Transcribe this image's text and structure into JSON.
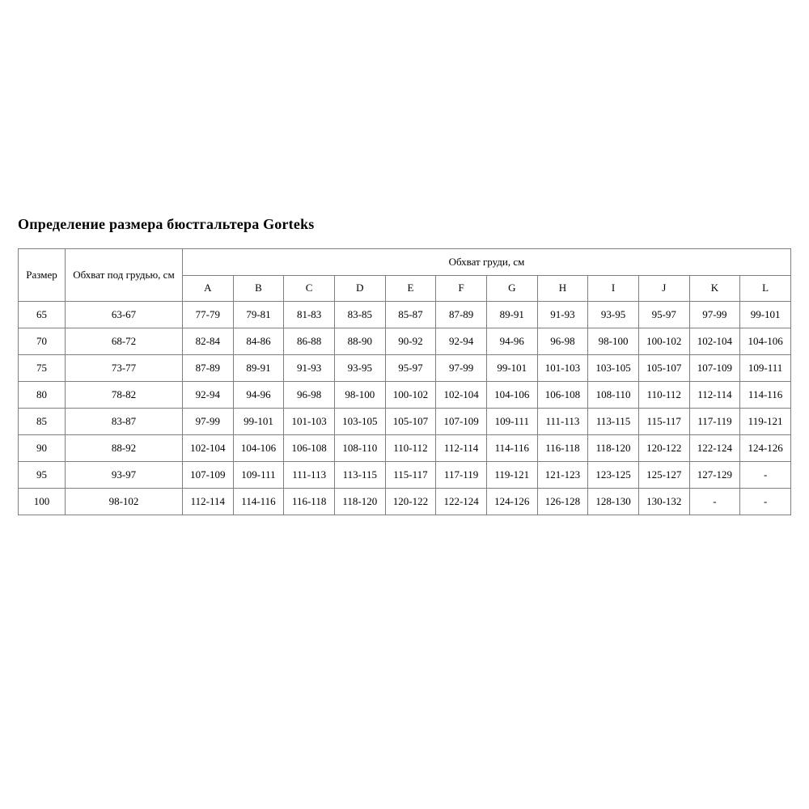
{
  "page": {
    "title": "Определение размера бюстгальтера Gorteks"
  },
  "colors": {
    "background": "#ffffff",
    "text": "#000000",
    "table_border": "#7f7f7f"
  },
  "table": {
    "header": {
      "size_label": "Размер",
      "underbust_label": "Обхват под грудью, см",
      "bust_label": "Обхват груди, см",
      "cup_columns": [
        "A",
        "B",
        "C",
        "D",
        "E",
        "F",
        "G",
        "H",
        "I",
        "J",
        "K",
        "L"
      ]
    },
    "rows": [
      {
        "size": "65",
        "underbust": "63-67",
        "cups": [
          "77-79",
          "79-81",
          "81-83",
          "83-85",
          "85-87",
          "87-89",
          "89-91",
          "91-93",
          "93-95",
          "95-97",
          "97-99",
          "99-101"
        ]
      },
      {
        "size": "70",
        "underbust": "68-72",
        "cups": [
          "82-84",
          "84-86",
          "86-88",
          "88-90",
          "90-92",
          "92-94",
          "94-96",
          "96-98",
          "98-100",
          "100-102",
          "102-104",
          "104-106"
        ]
      },
      {
        "size": "75",
        "underbust": "73-77",
        "cups": [
          "87-89",
          "89-91",
          "91-93",
          "93-95",
          "95-97",
          "97-99",
          "99-101",
          "101-103",
          "103-105",
          "105-107",
          "107-109",
          "109-111"
        ]
      },
      {
        "size": "80",
        "underbust": "78-82",
        "cups": [
          "92-94",
          "94-96",
          "96-98",
          "98-100",
          "100-102",
          "102-104",
          "104-106",
          "106-108",
          "108-110",
          "110-112",
          "112-114",
          "114-116"
        ]
      },
      {
        "size": "85",
        "underbust": "83-87",
        "cups": [
          "97-99",
          "99-101",
          "101-103",
          "103-105",
          "105-107",
          "107-109",
          "109-111",
          "111-113",
          "113-115",
          "115-117",
          "117-119",
          "119-121"
        ]
      },
      {
        "size": "90",
        "underbust": "88-92",
        "cups": [
          "102-104",
          "104-106",
          "106-108",
          "108-110",
          "110-112",
          "112-114",
          "114-116",
          "116-118",
          "118-120",
          "120-122",
          "122-124",
          "124-126"
        ]
      },
      {
        "size": "95",
        "underbust": "93-97",
        "cups": [
          "107-109",
          "109-111",
          "111-113",
          "113-115",
          "115-117",
          "117-119",
          "119-121",
          "121-123",
          "123-125",
          "125-127",
          "127-129",
          "-"
        ]
      },
      {
        "size": "100",
        "underbust": "98-102",
        "cups": [
          "112-114",
          "114-116",
          "116-118",
          "118-120",
          "120-122",
          "122-124",
          "124-126",
          "126-128",
          "128-130",
          "130-132",
          "-",
          "-"
        ]
      }
    ]
  }
}
